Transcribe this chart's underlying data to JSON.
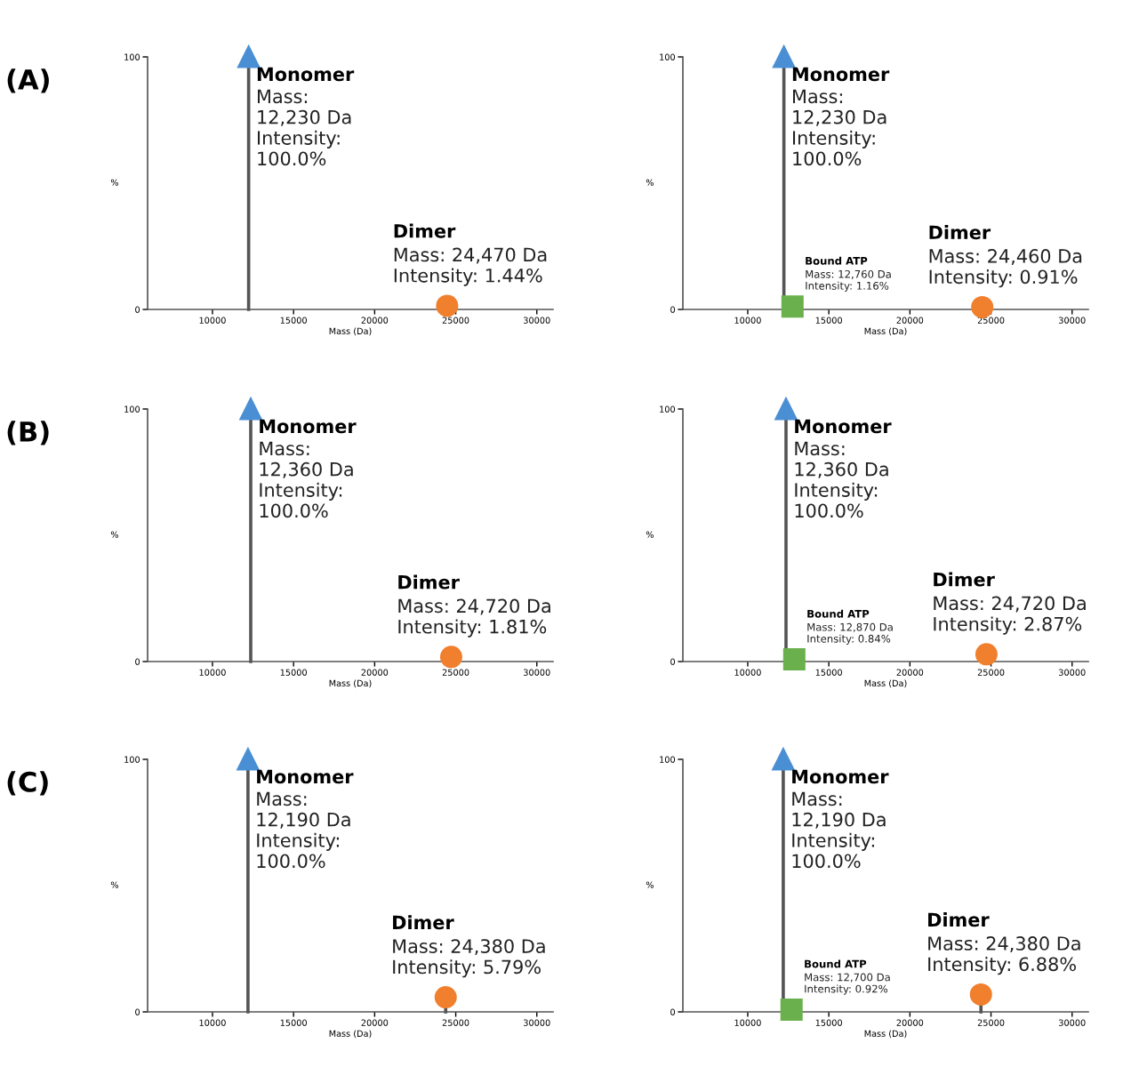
{
  "chart_data": [
    {
      "type": "lollipop",
      "title": "(A)",
      "xlabel": "Mass (Da)",
      "ylabel": "%",
      "xlim": [
        6000,
        31000
      ],
      "xticks": [
        10000,
        15000,
        20000,
        25000,
        30000
      ],
      "ylim": [
        0,
        100
      ],
      "yticks": [
        0,
        100
      ],
      "series": [
        {
          "x": [
            12230
          ],
          "values": [
            100
          ],
          "color": "#4a8fd4",
          "marker": "triangle"
        },
        {
          "x": [
            24470
          ],
          "values": [
            1.44
          ],
          "color": "#f07f2e",
          "marker": "circle"
        }
      ],
      "annotations": [
        {
          "text": "Monomer\nMass:\n12,230 Da\nIntensity:\n100.0%",
          "x": 12230,
          "y": 100
        },
        {
          "text": "Dimer\nMass: 24,470 Da\nIntensity: 1.44%",
          "x": 24470,
          "y": 1.44
        }
      ]
    },
    {
      "type": "lollipop",
      "xlabel": "Mass (Da)",
      "ylabel": "%",
      "xlim": [
        6000,
        31000
      ],
      "xticks": [
        10000,
        15000,
        20000,
        25000,
        30000
      ],
      "ylim": [
        0,
        100
      ],
      "yticks": [
        0,
        100
      ],
      "series": [
        {
          "x": [
            12230
          ],
          "values": [
            100
          ],
          "color": "#4a8fd4",
          "marker": "triangle"
        },
        {
          "x": [
            12760
          ],
          "values": [
            1.16
          ],
          "color": "#6ab04c",
          "marker": "square"
        },
        {
          "x": [
            24460
          ],
          "values": [
            0.91
          ],
          "color": "#f07f2e",
          "marker": "circle"
        }
      ],
      "annotations": [
        {
          "text": "Monomer\nMass:\n12,230 Da\nIntensity:\n100.0%",
          "x": 12230,
          "y": 100
        },
        {
          "text": "Bound ATP\nMass: 12,760 Da\nIntensity: 1.16%",
          "x": 12760,
          "y": 1.16
        },
        {
          "text": "Dimer\nMass: 24,460 Da\nIntensity: 0.91%",
          "x": 24460,
          "y": 0.91
        }
      ]
    },
    {
      "type": "lollipop",
      "title": "(B)",
      "xlabel": "Mass (Da)",
      "ylabel": "%",
      "xlim": [
        6000,
        31000
      ],
      "xticks": [
        10000,
        15000,
        20000,
        25000,
        30000
      ],
      "ylim": [
        0,
        100
      ],
      "yticks": [
        0,
        100
      ],
      "series": [
        {
          "x": [
            12360
          ],
          "values": [
            100
          ],
          "color": "#4a8fd4",
          "marker": "triangle"
        },
        {
          "x": [
            24720
          ],
          "values": [
            1.81
          ],
          "color": "#f07f2e",
          "marker": "circle"
        }
      ],
      "annotations": [
        {
          "text": "Monomer\nMass:\n12,360 Da\nIntensity:\n100.0%",
          "x": 12360,
          "y": 100
        },
        {
          "text": "Dimer\nMass: 24,720 Da\nIntensity: 1.81%",
          "x": 24720,
          "y": 1.81
        }
      ]
    },
    {
      "type": "lollipop",
      "xlabel": "Mass (Da)",
      "ylabel": "%",
      "xlim": [
        6000,
        31000
      ],
      "xticks": [
        10000,
        15000,
        20000,
        25000,
        30000
      ],
      "ylim": [
        0,
        100
      ],
      "yticks": [
        0,
        100
      ],
      "series": [
        {
          "x": [
            12360
          ],
          "values": [
            100
          ],
          "color": "#4a8fd4",
          "marker": "triangle"
        },
        {
          "x": [
            12870
          ],
          "values": [
            0.84
          ],
          "color": "#6ab04c",
          "marker": "square"
        },
        {
          "x": [
            24720
          ],
          "values": [
            2.87
          ],
          "color": "#f07f2e",
          "marker": "circle"
        }
      ],
      "annotations": [
        {
          "text": "Monomer\nMass:\n12,360 Da\nIntensity:\n100.0%",
          "x": 12360,
          "y": 100
        },
        {
          "text": "Bound ATP\nMass: 12,870 Da\nIntensity: 0.84%",
          "x": 12870,
          "y": 0.84
        },
        {
          "text": "Dimer\nMass: 24,720 Da\nIntensity: 2.87%",
          "x": 24720,
          "y": 2.87
        }
      ]
    },
    {
      "type": "lollipop",
      "title": "(C)",
      "xlabel": "Mass (Da)",
      "ylabel": "%",
      "xlim": [
        6000,
        31000
      ],
      "xticks": [
        10000,
        15000,
        20000,
        25000,
        30000
      ],
      "ylim": [
        0,
        100
      ],
      "yticks": [
        0,
        100
      ],
      "series": [
        {
          "x": [
            12190
          ],
          "values": [
            100
          ],
          "color": "#4a8fd4",
          "marker": "triangle"
        },
        {
          "x": [
            24380
          ],
          "values": [
            5.79
          ],
          "color": "#f07f2e",
          "marker": "circle"
        }
      ],
      "annotations": [
        {
          "text": "Monomer\nMass:\n12,190 Da\nIntensity:\n100.0%",
          "x": 12190,
          "y": 100
        },
        {
          "text": "Dimer\nMass: 24,380 Da\nIntensity: 5.79%",
          "x": 24380,
          "y": 5.79
        }
      ]
    },
    {
      "type": "lollipop",
      "xlabel": "Mass (Da)",
      "ylabel": "%",
      "xlim": [
        6000,
        31000
      ],
      "xticks": [
        10000,
        15000,
        20000,
        25000,
        30000
      ],
      "ylim": [
        0,
        100
      ],
      "yticks": [
        0,
        100
      ],
      "series": [
        {
          "x": [
            12190
          ],
          "values": [
            100
          ],
          "color": "#4a8fd4",
          "marker": "triangle"
        },
        {
          "x": [
            12700
          ],
          "values": [
            0.92
          ],
          "color": "#6ab04c",
          "marker": "square"
        },
        {
          "x": [
            24380
          ],
          "values": [
            6.88
          ],
          "color": "#f07f2e",
          "marker": "circle"
        }
      ],
      "annotations": [
        {
          "text": "Monomer\nMass:\n12,190 Da\nIntensity:\n100.0%",
          "x": 12190,
          "y": 100
        },
        {
          "text": "Bound ATP\nMass: 12,700 Da\nIntensity: 0.92%",
          "x": 12700,
          "y": 0.92
        },
        {
          "text": "Dimer\nMass: 24,380 Da\nIntensity: 6.88%",
          "x": 24380,
          "y": 6.88
        }
      ]
    }
  ]
}
